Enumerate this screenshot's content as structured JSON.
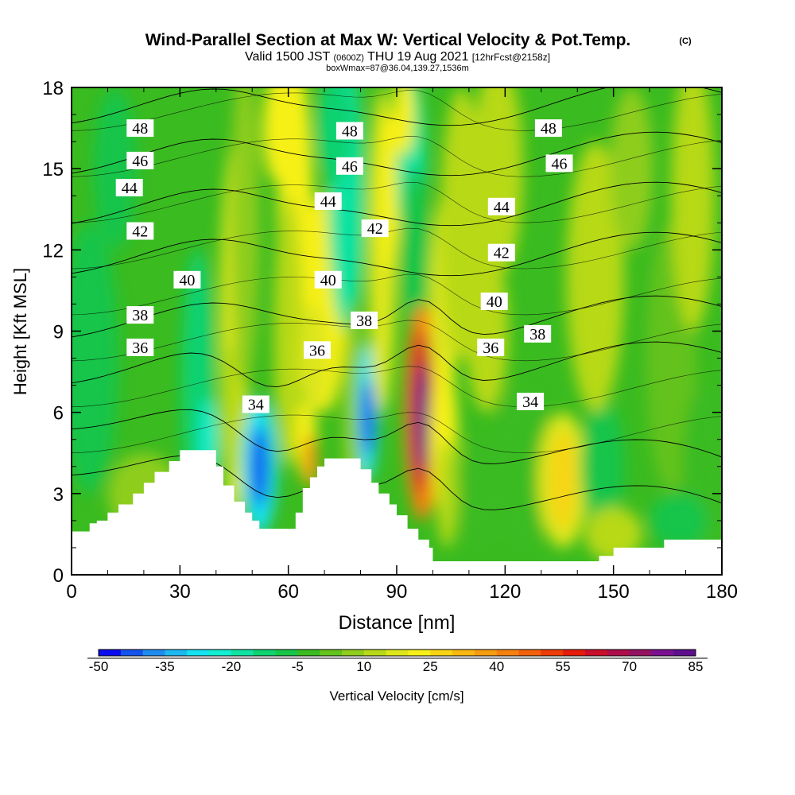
{
  "header": {
    "title": "Wind-Parallel Section at Max W: Vertical Velocity & Pot.Temp.",
    "copyright": "(C)",
    "valid_prefix": "Valid 1500 JST",
    "valid_zulu": "(0600Z)",
    "valid_date": "THU 19 Aug 2021",
    "forecast": "[12hrFcst@2158z]",
    "box_info": "boxWmax=87@36.04,139.27,1536m"
  },
  "chart_data": {
    "type": "heatmap",
    "title": "Wind-Parallel Section at Max W: Vertical Velocity & Pot.Temp.",
    "xlabel": "Distance [nm]",
    "ylabel": "Height [Kft MSL]",
    "xlim": [
      0,
      180
    ],
    "ylim": [
      0,
      18
    ],
    "x_ticks": [
      0,
      30,
      60,
      90,
      120,
      150,
      180
    ],
    "y_ticks": [
      0,
      3,
      6,
      9,
      12,
      15,
      18
    ],
    "grid": false,
    "terrain_top_kft": [
      [
        0,
        1.6
      ],
      [
        3,
        1.6
      ],
      [
        5,
        1.9
      ],
      [
        7,
        2.0
      ],
      [
        10,
        2.3
      ],
      [
        13,
        2.6
      ],
      [
        17,
        3.0
      ],
      [
        20,
        3.4
      ],
      [
        23,
        3.8
      ],
      [
        27,
        4.2
      ],
      [
        30,
        4.6
      ],
      [
        35,
        4.6
      ],
      [
        39,
        4.6
      ],
      [
        40,
        4.0
      ],
      [
        42,
        3.3
      ],
      [
        45,
        2.7
      ],
      [
        48,
        2.3
      ],
      [
        50,
        2.0
      ],
      [
        52,
        1.7
      ],
      [
        56,
        1.7
      ],
      [
        60,
        1.7
      ],
      [
        62,
        2.3
      ],
      [
        64,
        3.2
      ],
      [
        66,
        3.6
      ],
      [
        68,
        4.0
      ],
      [
        70,
        4.3
      ],
      [
        75,
        4.3
      ],
      [
        79,
        4.3
      ],
      [
        80,
        3.9
      ],
      [
        83,
        3.4
      ],
      [
        85,
        3.0
      ],
      [
        88,
        2.6
      ],
      [
        90,
        2.2
      ],
      [
        93,
        1.7
      ],
      [
        96,
        1.3
      ],
      [
        99,
        1.0
      ],
      [
        100,
        0.5
      ],
      [
        115,
        0.5
      ],
      [
        130,
        0.5
      ],
      [
        145,
        0.5
      ],
      [
        146,
        0.7
      ],
      [
        150,
        1.0
      ],
      [
        155,
        1.0
      ],
      [
        160,
        1.0
      ],
      [
        164,
        1.3
      ],
      [
        180,
        1.3
      ]
    ],
    "vertical_velocity_cells": [
      {
        "x": 97,
        "y": 5.8,
        "value": 85
      },
      {
        "x": 97,
        "y": 6.5,
        "value": 60
      },
      {
        "x": 98,
        "y": 4.5,
        "value": 45
      },
      {
        "x": 52,
        "y": 4.0,
        "value": -50
      },
      {
        "x": 82,
        "y": 5.8,
        "value": -45
      },
      {
        "x": 38,
        "y": 5.5,
        "value": -30
      },
      {
        "x": 136,
        "y": 3.5,
        "value": 25
      },
      {
        "x": 70,
        "y": 9.5,
        "value": 22
      },
      {
        "x": 58,
        "y": 16.5,
        "value": 22
      }
    ],
    "potential_temperature_contours": {
      "levels": [
        34,
        36,
        38,
        40,
        42,
        44,
        46,
        48
      ],
      "label_positions_note": "",
      "labels": [
        {
          "level": 48,
          "x": 19,
          "y": 16.5
        },
        {
          "level": 48,
          "x": 77,
          "y": 16.4
        },
        {
          "level": 48,
          "x": 132,
          "y": 16.5
        },
        {
          "level": 46,
          "x": 19,
          "y": 15.3
        },
        {
          "level": 46,
          "x": 77,
          "y": 15.1
        },
        {
          "level": 46,
          "x": 135,
          "y": 15.2
        },
        {
          "level": 44,
          "x": 16,
          "y": 14.3
        },
        {
          "level": 44,
          "x": 71,
          "y": 13.8
        },
        {
          "level": 44,
          "x": 119,
          "y": 13.6
        },
        {
          "level": 42,
          "x": 19,
          "y": 12.7
        },
        {
          "level": 42,
          "x": 84,
          "y": 12.8
        },
        {
          "level": 42,
          "x": 119,
          "y": 11.9
        },
        {
          "level": 40,
          "x": 32,
          "y": 10.9
        },
        {
          "level": 40,
          "x": 71,
          "y": 10.9
        },
        {
          "level": 40,
          "x": 117,
          "y": 10.1
        },
        {
          "level": 38,
          "x": 19,
          "y": 9.6
        },
        {
          "level": 38,
          "x": 81,
          "y": 9.4
        },
        {
          "level": 38,
          "x": 129,
          "y": 8.9
        },
        {
          "level": 36,
          "x": 19,
          "y": 8.4
        },
        {
          "level": 36,
          "x": 68,
          "y": 8.3
        },
        {
          "level": 36,
          "x": 116,
          "y": 8.4
        },
        {
          "level": 34,
          "x": 51,
          "y": 6.3
        },
        {
          "level": 34,
          "x": 127,
          "y": 6.4
        }
      ]
    },
    "colorbar": {
      "label": "Vertical Velocity [cm/s]",
      "tick_labels": [
        "-50",
        "-35",
        "-20",
        "-5",
        "10",
        "25",
        "40",
        "55",
        "70",
        "85"
      ],
      "min": -50,
      "max": 85,
      "step": 5,
      "colors": [
        "#0b0bf0",
        "#1553ee",
        "#1e8bef",
        "#1cb7ef",
        "#16e2ef",
        "#12eed0",
        "#10e3a2",
        "#10d271",
        "#17c548",
        "#3abb20",
        "#63c21c",
        "#8ecd1c",
        "#b7d919",
        "#dde61a",
        "#f6f018",
        "#f8d415",
        "#f8b712",
        "#f69c11",
        "#f5800e",
        "#f2600b",
        "#ee3c09",
        "#e61a0b",
        "#c90e2b",
        "#ad0d49",
        "#931062",
        "#7a1190",
        "#5d0f8d"
      ]
    }
  }
}
